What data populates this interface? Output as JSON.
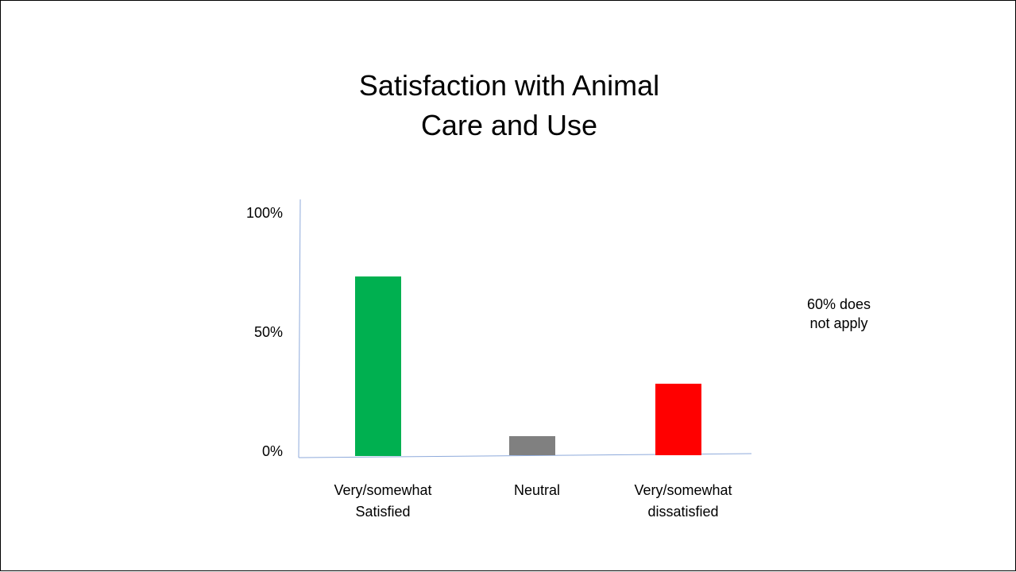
{
  "title_lines": [
    "Satisfaction with Animal",
    "Care and Use"
  ],
  "note_lines": [
    "60% does",
    "not apply"
  ],
  "chart_data": {
    "type": "bar",
    "title": "Satisfaction with Animal Care and Use",
    "categories": [
      [
        "Very/somewhat",
        "Satisfied"
      ],
      [
        "Neutral"
      ],
      [
        "Very/somewhat",
        "dissatisfied"
      ]
    ],
    "values": [
      75,
      8,
      30
    ],
    "colors": [
      "#00b050",
      "#808080",
      "#ff0000"
    ],
    "ylim": [
      0,
      100
    ],
    "yticks": [
      0,
      50,
      100
    ],
    "ytick_labels": [
      "0%",
      "50%",
      "100%"
    ],
    "axis_color": "#8eaadb",
    "grid": false
  }
}
